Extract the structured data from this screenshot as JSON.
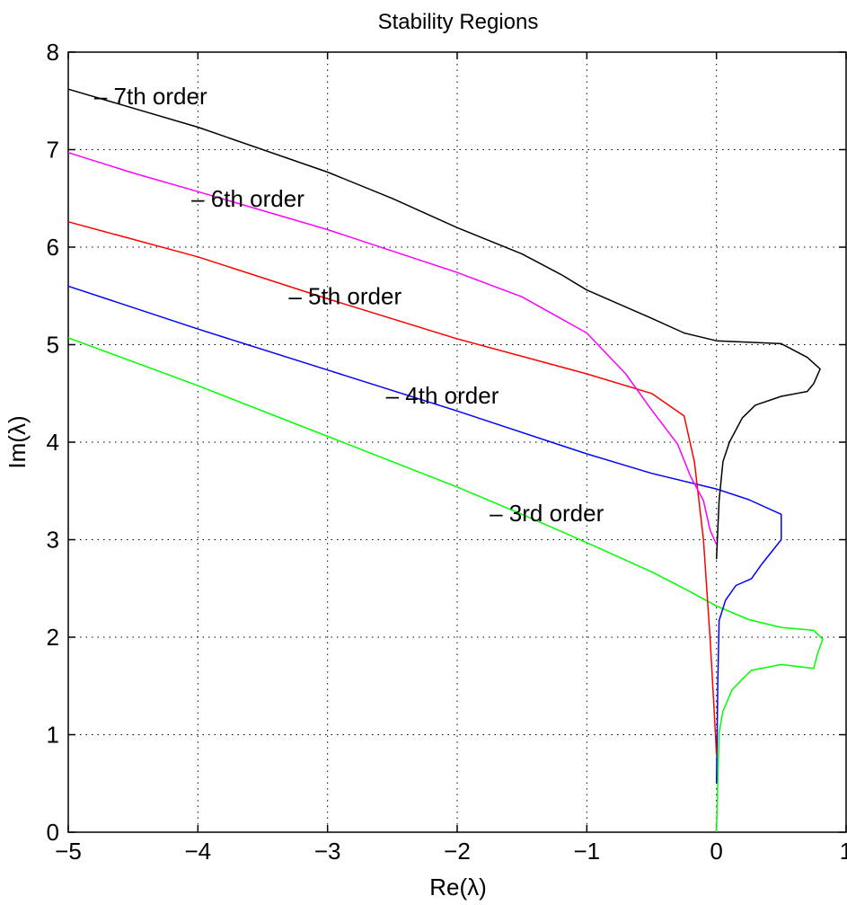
{
  "chart_data": {
    "type": "line",
    "title": "Stability Regions",
    "xlabel": "Re(λ)",
    "ylabel": "Im(λ)",
    "xlim": [
      -5,
      1
    ],
    "ylim": [
      0,
      8
    ],
    "x_ticks": [
      "−5",
      "−4",
      "−3",
      "−2",
      "−1",
      "0",
      "1"
    ],
    "y_ticks": [
      "0",
      "1",
      "2",
      "3",
      "4",
      "5",
      "6",
      "7",
      "8"
    ],
    "grid": true,
    "series": [
      {
        "color": "#00ff00",
        "points": [
          [
            -5,
            5.07
          ],
          [
            -4,
            4.58
          ],
          [
            -3,
            4.06
          ],
          [
            -2,
            3.54
          ],
          [
            -1.5,
            3.26
          ],
          [
            -1,
            2.97
          ],
          [
            -0.5,
            2.67
          ],
          [
            -0.25,
            2.5
          ],
          [
            0,
            2.32
          ],
          [
            0.25,
            2.18
          ],
          [
            0.5,
            2.1
          ],
          [
            0.75,
            2.07
          ],
          [
            0.82,
            1.98
          ],
          [
            0.78,
            1.83
          ],
          [
            0.75,
            1.68
          ],
          [
            0.5,
            1.72
          ],
          [
            0.27,
            1.66
          ],
          [
            0.2,
            1.57
          ],
          [
            0.12,
            1.46
          ],
          [
            0.05,
            1.24
          ],
          [
            0.02,
            1.02
          ],
          [
            0.01,
            0.5
          ],
          [
            0,
            0
          ]
        ]
      },
      {
        "color": "#0000ff",
        "points": [
          [
            -5,
            5.6
          ],
          [
            -4,
            5.16
          ],
          [
            -3,
            4.74
          ],
          [
            -2,
            4.32
          ],
          [
            -1,
            3.88
          ],
          [
            -0.5,
            3.68
          ],
          [
            0,
            3.52
          ],
          [
            0.25,
            3.41
          ],
          [
            0.5,
            3.26
          ],
          [
            0.5,
            3.0
          ],
          [
            0.35,
            2.75
          ],
          [
            0.27,
            2.6
          ],
          [
            0.15,
            2.53
          ],
          [
            0.07,
            2.38
          ],
          [
            0.02,
            2.17
          ],
          [
            0.01,
            1.5
          ],
          [
            0,
            0.5
          ]
        ]
      },
      {
        "color": "#ff0000",
        "points": [
          [
            -5,
            6.26
          ],
          [
            -4,
            5.9
          ],
          [
            -3,
            5.47
          ],
          [
            -2,
            5.06
          ],
          [
            -1,
            4.7
          ],
          [
            -0.5,
            4.5
          ],
          [
            -0.25,
            4.27
          ],
          [
            -0.17,
            3.8
          ],
          [
            -0.1,
            3.0
          ],
          [
            -0.05,
            2.0
          ],
          [
            -0.02,
            1.3
          ],
          [
            0,
            0.8
          ]
        ]
      },
      {
        "color": "#ff00ff",
        "points": [
          [
            -5,
            6.97
          ],
          [
            -4.5,
            6.76
          ],
          [
            -4,
            6.57
          ],
          [
            -3,
            6.18
          ],
          [
            -2,
            5.74
          ],
          [
            -1.5,
            5.49
          ],
          [
            -1,
            5.12
          ],
          [
            -0.7,
            4.7
          ],
          [
            -0.5,
            4.33
          ],
          [
            -0.3,
            3.98
          ],
          [
            -0.2,
            3.65
          ],
          [
            -0.1,
            3.4
          ],
          [
            -0.05,
            3.1
          ],
          [
            0,
            2.95
          ]
        ]
      },
      {
        "color": "#000000",
        "points": [
          [
            -5,
            7.62
          ],
          [
            -4,
            7.23
          ],
          [
            -3,
            6.77
          ],
          [
            -2.5,
            6.5
          ],
          [
            -2,
            6.2
          ],
          [
            -1.5,
            5.93
          ],
          [
            -1.2,
            5.72
          ],
          [
            -1,
            5.56
          ],
          [
            -0.5,
            5.27
          ],
          [
            -0.25,
            5.12
          ],
          [
            0,
            5.04
          ],
          [
            0.5,
            5.01
          ],
          [
            0.7,
            4.87
          ],
          [
            0.8,
            4.75
          ],
          [
            0.75,
            4.6
          ],
          [
            0.7,
            4.52
          ],
          [
            0.5,
            4.47
          ],
          [
            0.3,
            4.38
          ],
          [
            0.2,
            4.25
          ],
          [
            0.1,
            4.0
          ],
          [
            0.05,
            3.8
          ],
          [
            0.02,
            3.4
          ],
          [
            0,
            2.8
          ]
        ]
      }
    ],
    "annotations": [
      {
        "text": "– 7th order",
        "x": -4.8,
        "y": 7.55
      },
      {
        "text": "– 6th order",
        "x": -4.05,
        "y": 6.5
      },
      {
        "text": "– 5th order",
        "x": -3.3,
        "y": 5.5
      },
      {
        "text": "– 4th order",
        "x": -2.55,
        "y": 4.48
      },
      {
        "text": "– 3rd order",
        "x": -1.75,
        "y": 3.27
      }
    ]
  }
}
